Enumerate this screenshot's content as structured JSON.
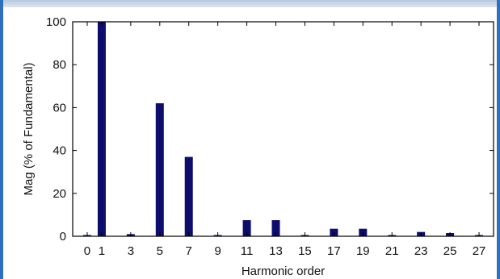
{
  "chart_data": {
    "type": "bar",
    "xlabel": "Harmonic order",
    "ylabel": "Mag (% of Fundamental)",
    "ylim": [
      0,
      100
    ],
    "xlim": [
      -1,
      28
    ],
    "yticks": [
      0,
      20,
      40,
      60,
      80,
      100
    ],
    "xticks": [
      0,
      1,
      3,
      5,
      7,
      9,
      11,
      13,
      15,
      17,
      19,
      21,
      23,
      25,
      27
    ],
    "x": [
      0,
      1,
      3,
      5,
      7,
      9,
      11,
      13,
      15,
      17,
      19,
      21,
      23,
      25,
      27
    ],
    "values": [
      0.5,
      100,
      1,
      62,
      37,
      0.5,
      7.5,
      7.5,
      0.5,
      3.5,
      3.5,
      0.5,
      2,
      1.5,
      0.5
    ],
    "bar_color": "#0d0d6b",
    "grid": false
  }
}
